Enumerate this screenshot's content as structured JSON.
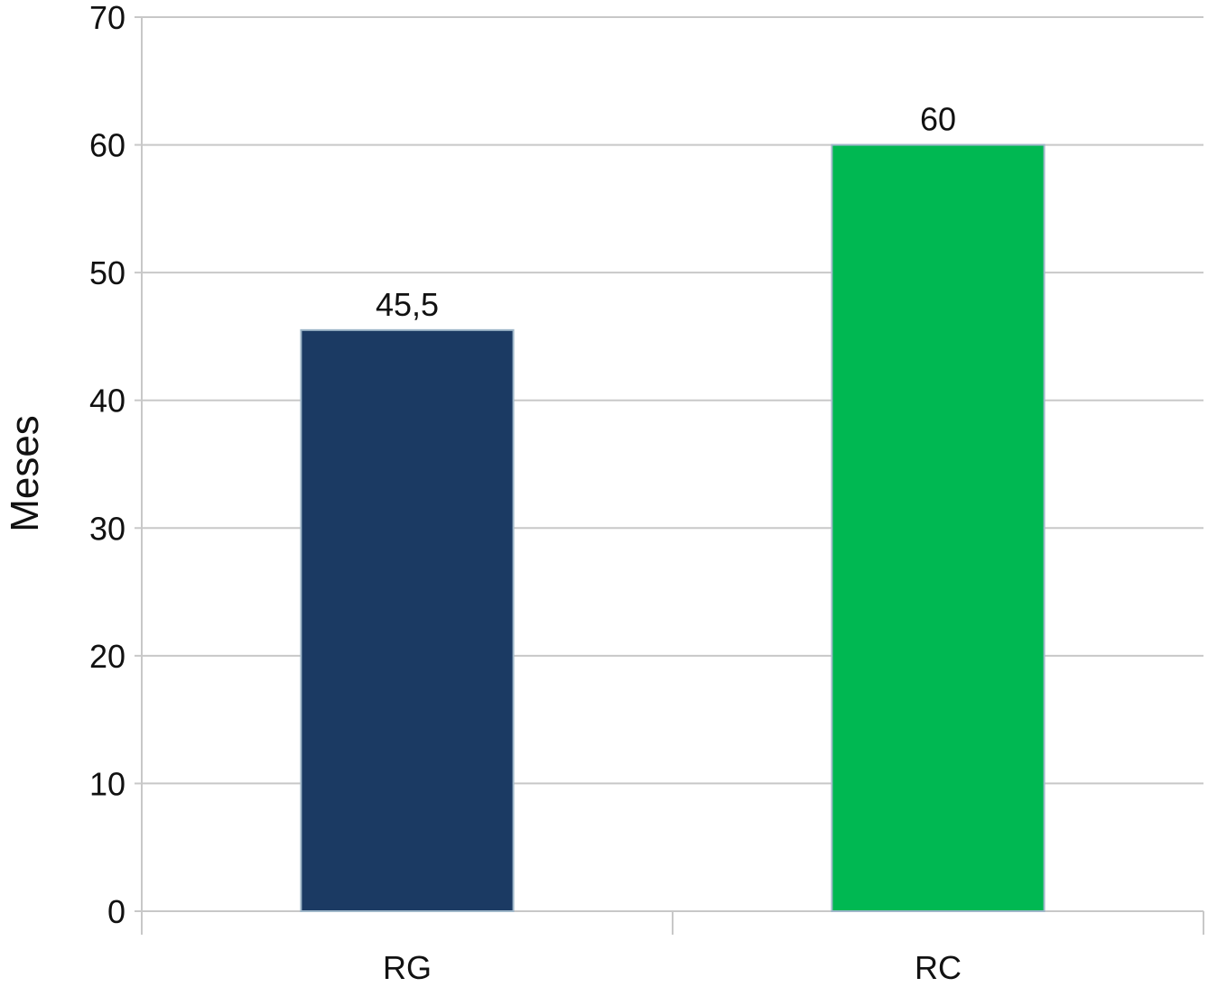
{
  "chart_data": {
    "type": "bar",
    "title": "",
    "xlabel": "",
    "ylabel": "Meses",
    "categories": [
      "RG",
      "RC"
    ],
    "values": [
      45.5,
      60
    ],
    "value_labels": [
      "45,5",
      "60"
    ],
    "colors": [
      "#1b3a63",
      "#00b852"
    ],
    "ylim": [
      0,
      70
    ],
    "yticks": [
      0,
      10,
      20,
      30,
      40,
      50,
      60,
      70
    ],
    "grid": true,
    "legend": "none"
  }
}
